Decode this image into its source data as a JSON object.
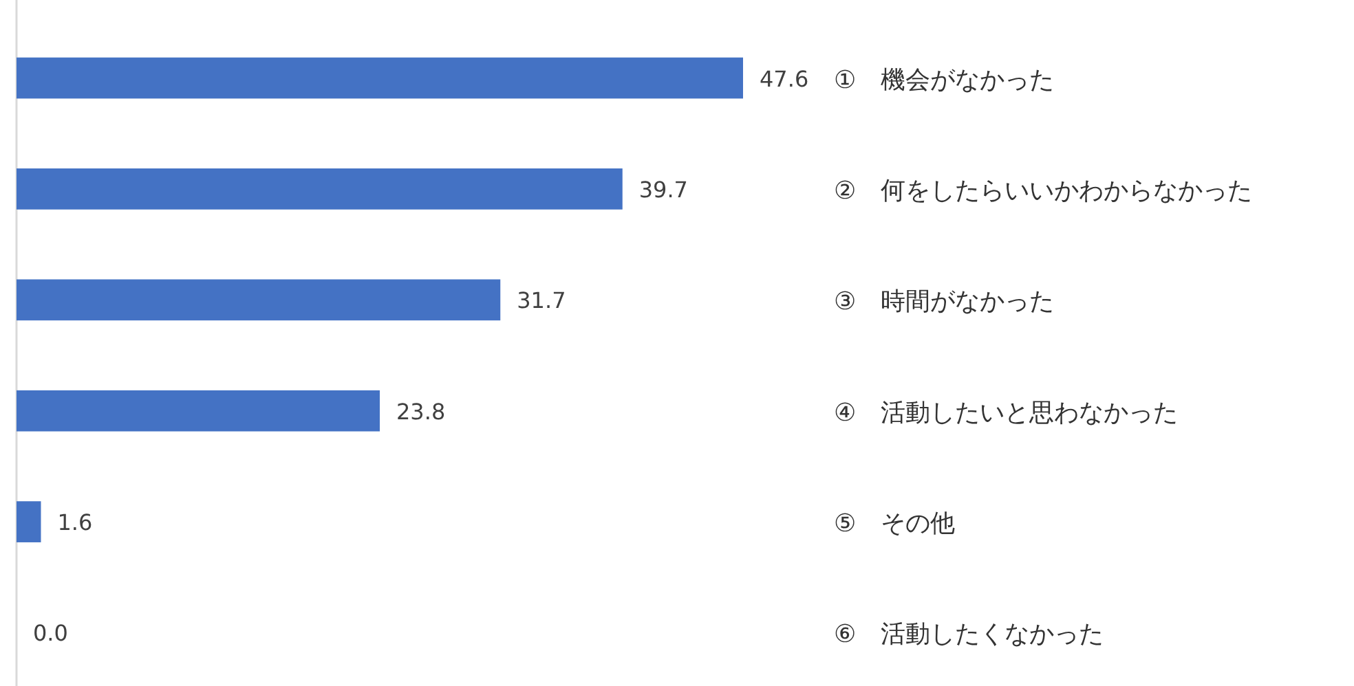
{
  "chart_data": {
    "type": "bar",
    "orientation": "horizontal",
    "categories": [
      "①　機会がなかった",
      "②　何をしたらいいかわからなかった",
      "③　時間がなかった",
      "④　活動したいと思わなかった",
      "⑤　その他",
      "⑥　活動したくなかった"
    ],
    "values": [
      47.6,
      39.7,
      31.7,
      23.8,
      1.6,
      0.0
    ],
    "color": "#4472c4",
    "data_labels": true,
    "value_labels": [
      "47.6",
      "39.7",
      "31.7",
      "23.8",
      "1.6",
      "0.0"
    ]
  }
}
